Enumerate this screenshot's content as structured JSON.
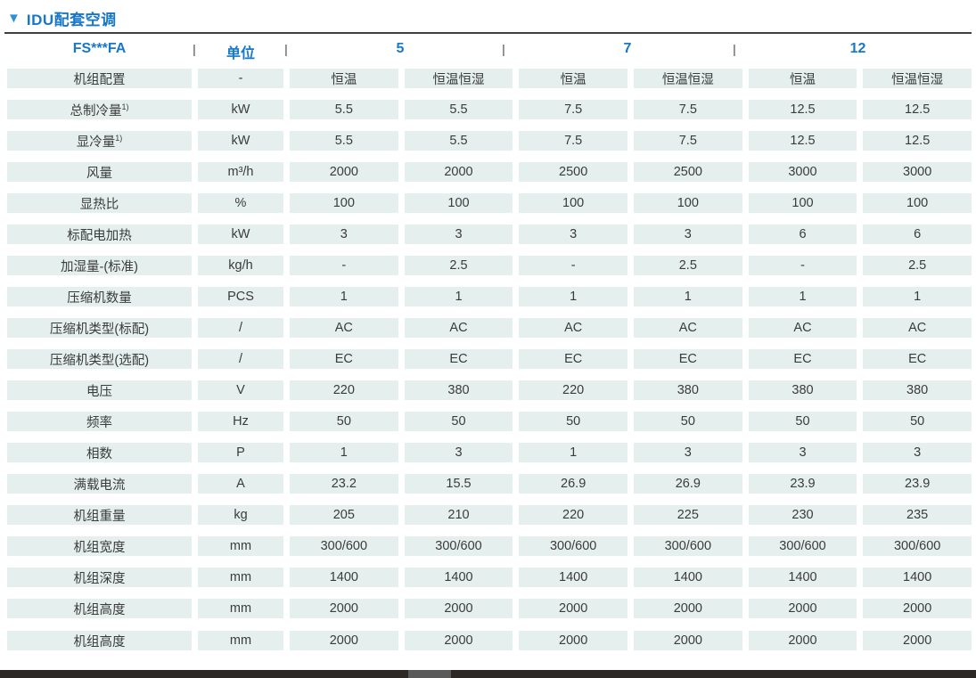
{
  "colors": {
    "accent_blue": "#1777c8",
    "triangle_blue": "#2e8fd6",
    "cell_bg": "#e4efee",
    "text_dark": "#3b3b3b",
    "rule_dark": "#3f3f3f",
    "bar_dark": "#2b2826",
    "bar_thumb": "#5a5a5a"
  },
  "page": {
    "title_icon": "▼",
    "title": "IDU配套空调"
  },
  "table": {
    "model_header": "FS***FA",
    "unit_header": "单位",
    "separator": "|",
    "groups": [
      {
        "label": "5"
      },
      {
        "label": "7"
      },
      {
        "label": "12"
      }
    ],
    "rows": [
      {
        "label": "机组配置",
        "unit": "-",
        "values": [
          "恒温",
          "恒温恒湿",
          "恒温",
          "恒温恒湿",
          "恒温",
          "恒温恒湿"
        ]
      },
      {
        "label": "总制冷量",
        "sup": "1)",
        "unit": "kW",
        "values": [
          "5.5",
          "5.5",
          "7.5",
          "7.5",
          "12.5",
          "12.5"
        ]
      },
      {
        "label": "显冷量",
        "sup": "1)",
        "unit": "kW",
        "values": [
          "5.5",
          "5.5",
          "7.5",
          "7.5",
          "12.5",
          "12.5"
        ]
      },
      {
        "label": "风量",
        "unit": "m³/h",
        "values": [
          "2000",
          "2000",
          "2500",
          "2500",
          "3000",
          "3000"
        ]
      },
      {
        "label": "显热比",
        "unit": "%",
        "values": [
          "100",
          "100",
          "100",
          "100",
          "100",
          "100"
        ]
      },
      {
        "label": "标配电加热",
        "unit": "kW",
        "values": [
          "3",
          "3",
          "3",
          "3",
          "6",
          "6"
        ]
      },
      {
        "label": "加湿量-(标准)",
        "unit": "kg/h",
        "values": [
          "-",
          "2.5",
          "-",
          "2.5",
          "-",
          "2.5"
        ]
      },
      {
        "label": "压缩机数量",
        "unit": "PCS",
        "values": [
          "1",
          "1",
          "1",
          "1",
          "1",
          "1"
        ]
      },
      {
        "label": "压缩机类型(标配)",
        "unit": "/",
        "values": [
          "AC",
          "AC",
          "AC",
          "AC",
          "AC",
          "AC"
        ]
      },
      {
        "label": "压缩机类型(选配)",
        "unit": "/",
        "values": [
          "EC",
          "EC",
          "EC",
          "EC",
          "EC",
          "EC"
        ]
      },
      {
        "label": "电压",
        "unit": "V",
        "values": [
          "220",
          "380",
          "220",
          "380",
          "380",
          "380"
        ]
      },
      {
        "label": "频率",
        "unit": "Hz",
        "values": [
          "50",
          "50",
          "50",
          "50",
          "50",
          "50"
        ]
      },
      {
        "label": "相数",
        "unit": "P",
        "values": [
          "1",
          "3",
          "1",
          "3",
          "3",
          "3"
        ]
      },
      {
        "label": "满载电流",
        "unit": "A",
        "values": [
          "23.2",
          "15.5",
          "26.9",
          "26.9",
          "23.9",
          "23.9"
        ]
      },
      {
        "label": "机组重量",
        "unit": "kg",
        "values": [
          "205",
          "210",
          "220",
          "225",
          "230",
          "235"
        ]
      },
      {
        "label": "机组宽度",
        "unit": "mm",
        "values": [
          "300/600",
          "300/600",
          "300/600",
          "300/600",
          "300/600",
          "300/600"
        ]
      },
      {
        "label": "机组深度",
        "unit": "mm",
        "values": [
          "1400",
          "1400",
          "1400",
          "1400",
          "1400",
          "1400"
        ]
      },
      {
        "label": "机组高度",
        "unit": "mm",
        "values": [
          "2000",
          "2000",
          "2000",
          "2000",
          "2000",
          "2000"
        ]
      }
    ],
    "extra_row": {
      "label": "机组高度",
      "unit": "mm",
      "values": [
        "2000",
        "2000",
        "2000",
        "2000",
        "2000",
        "2000"
      ]
    }
  }
}
